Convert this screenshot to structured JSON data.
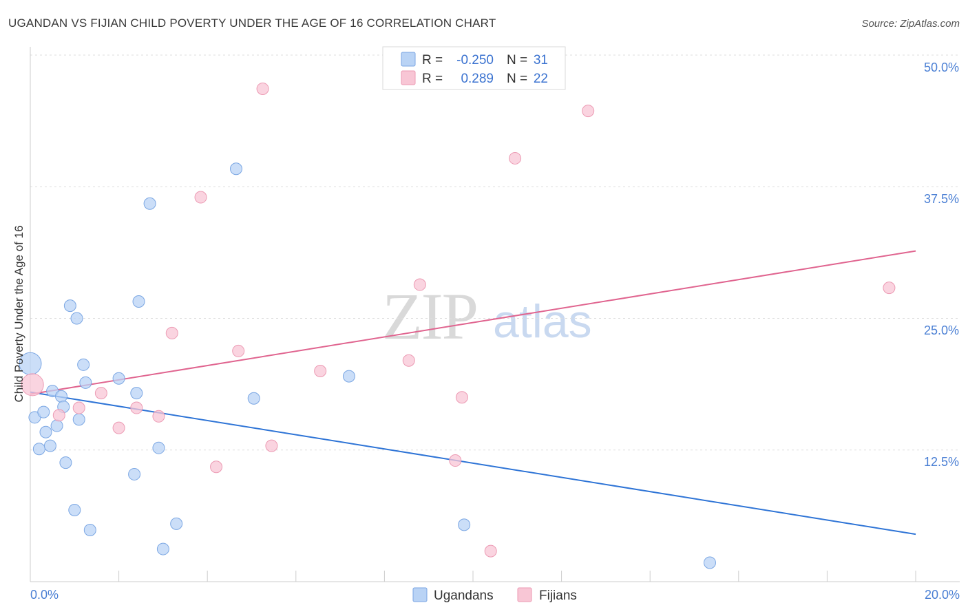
{
  "title": "UGANDAN VS FIJIAN CHILD POVERTY UNDER THE AGE OF 16 CORRELATION CHART",
  "source": "Source: ZipAtlas.com",
  "watermark": {
    "zip": "ZIP",
    "atlas": "atlas"
  },
  "colors": {
    "blue_fill": "#b9d3f5",
    "blue_stroke": "#7aa6e3",
    "blue_line": "#2e74d6",
    "pink_fill": "#f8c6d5",
    "pink_stroke": "#ec9ab3",
    "pink_line": "#e0648f",
    "axis_text": "#4a7fd4",
    "grid": "#dddddd"
  },
  "legend": {
    "rows": [
      {
        "r_label": "R =",
        "r_value": "-0.250",
        "n_label": "N =",
        "n_value": "31"
      },
      {
        "r_label": "R =",
        "r_value": "0.289",
        "n_label": "N =",
        "n_value": "22"
      }
    ]
  },
  "chart_data": {
    "type": "scatter",
    "title": "UGANDAN VS FIJIAN CHILD POVERTY UNDER THE AGE OF 16 CORRELATION CHART",
    "xlabel": "",
    "ylabel": "Child Poverty Under the Age of 16",
    "xlim": [
      0,
      20
    ],
    "ylim": [
      0,
      50
    ],
    "x_tick_labels": [
      "0.0%",
      "20.0%"
    ],
    "y_ticks": [
      12.5,
      25.0,
      37.5,
      50.0
    ],
    "y_tick_labels": [
      "12.5%",
      "25.0%",
      "37.5%",
      "50.0%"
    ],
    "grid": true,
    "series": [
      {
        "name": "Ugandans",
        "r": -0.25,
        "n": 31,
        "trend": {
          "x": [
            0,
            20
          ],
          "y": [
            18.0,
            4.5
          ]
        },
        "points": [
          {
            "x": 0.0,
            "y": 20.7,
            "size": "large"
          },
          {
            "x": 0.1,
            "y": 15.6
          },
          {
            "x": 0.2,
            "y": 12.6
          },
          {
            "x": 0.3,
            "y": 16.1
          },
          {
            "x": 0.35,
            "y": 14.2
          },
          {
            "x": 0.45,
            "y": 12.9
          },
          {
            "x": 0.5,
            "y": 18.1
          },
          {
            "x": 0.6,
            "y": 14.8
          },
          {
            "x": 0.7,
            "y": 17.6
          },
          {
            "x": 0.75,
            "y": 16.6
          },
          {
            "x": 0.8,
            "y": 11.3
          },
          {
            "x": 0.9,
            "y": 26.2
          },
          {
            "x": 1.0,
            "y": 6.8
          },
          {
            "x": 1.05,
            "y": 25.0
          },
          {
            "x": 1.1,
            "y": 15.4
          },
          {
            "x": 1.2,
            "y": 20.6
          },
          {
            "x": 1.25,
            "y": 18.9
          },
          {
            "x": 1.35,
            "y": 4.9
          },
          {
            "x": 2.0,
            "y": 19.3
          },
          {
            "x": 2.35,
            "y": 10.2
          },
          {
            "x": 2.4,
            "y": 17.9
          },
          {
            "x": 2.45,
            "y": 26.6
          },
          {
            "x": 2.7,
            "y": 35.9
          },
          {
            "x": 2.9,
            "y": 12.7
          },
          {
            "x": 3.0,
            "y": 3.1
          },
          {
            "x": 3.3,
            "y": 5.5
          },
          {
            "x": 4.65,
            "y": 39.2
          },
          {
            "x": 5.05,
            "y": 17.4
          },
          {
            "x": 7.2,
            "y": 19.5
          },
          {
            "x": 9.8,
            "y": 5.4
          },
          {
            "x": 15.35,
            "y": 1.8
          }
        ]
      },
      {
        "name": "Fijians",
        "r": 0.289,
        "n": 22,
        "trend": {
          "x": [
            0,
            20
          ],
          "y": [
            17.8,
            31.4
          ]
        },
        "points": [
          {
            "x": 0.05,
            "y": 18.7,
            "size": "large"
          },
          {
            "x": 0.65,
            "y": 15.8
          },
          {
            "x": 1.1,
            "y": 16.5
          },
          {
            "x": 1.6,
            "y": 17.9
          },
          {
            "x": 2.0,
            "y": 14.6
          },
          {
            "x": 2.4,
            "y": 16.5
          },
          {
            "x": 2.9,
            "y": 15.7
          },
          {
            "x": 3.2,
            "y": 23.6
          },
          {
            "x": 3.85,
            "y": 36.5
          },
          {
            "x": 4.2,
            "y": 10.9
          },
          {
            "x": 4.7,
            "y": 21.9
          },
          {
            "x": 5.25,
            "y": 46.8
          },
          {
            "x": 5.45,
            "y": 12.9
          },
          {
            "x": 6.55,
            "y": 20.0
          },
          {
            "x": 8.55,
            "y": 21.0
          },
          {
            "x": 8.8,
            "y": 28.2
          },
          {
            "x": 9.6,
            "y": 11.5
          },
          {
            "x": 9.75,
            "y": 17.5
          },
          {
            "x": 10.4,
            "y": 2.9
          },
          {
            "x": 10.95,
            "y": 40.2
          },
          {
            "x": 12.6,
            "y": 44.7
          },
          {
            "x": 19.4,
            "y": 27.9
          }
        ]
      }
    ]
  }
}
